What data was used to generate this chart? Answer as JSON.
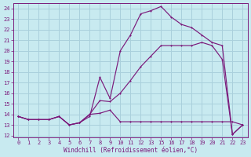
{
  "xlabel": "Windchill (Refroidissement éolien,°C)",
  "bg_color": "#c8eaf0",
  "grid_color": "#aad0dc",
  "line_color": "#7b1a7b",
  "xlim": [
    -0.5,
    23.5
  ],
  "ylim": [
    11.8,
    24.5
  ],
  "xticks": [
    0,
    1,
    2,
    3,
    4,
    5,
    6,
    7,
    8,
    9,
    10,
    11,
    12,
    13,
    15,
    16,
    17,
    18,
    19,
    20,
    21,
    22,
    23
  ],
  "xtick_pos": [
    0,
    1,
    2,
    3,
    4,
    5,
    6,
    7,
    8,
    9,
    10,
    11,
    12,
    13,
    14,
    15,
    16,
    17,
    18,
    19,
    20,
    21,
    22
  ],
  "yticks": [
    12,
    13,
    14,
    15,
    16,
    17,
    18,
    19,
    20,
    21,
    22,
    23,
    24
  ],
  "s1_x": [
    0,
    1,
    2,
    3,
    4,
    5,
    6,
    7,
    8,
    9,
    10,
    11,
    12,
    13,
    14,
    15,
    16,
    17,
    18,
    19,
    20,
    21,
    22
  ],
  "s1_y": [
    13.8,
    13.5,
    13.5,
    13.5,
    13.8,
    13.0,
    13.2,
    13.8,
    17.5,
    15.5,
    20.0,
    21.5,
    23.5,
    23.8,
    24.2,
    23.2,
    22.5,
    22.2,
    21.5,
    20.8,
    20.5,
    12.1,
    13.0
  ],
  "s2_x": [
    0,
    1,
    2,
    3,
    4,
    5,
    6,
    7,
    8,
    9,
    10,
    11,
    12,
    13,
    14,
    15,
    16,
    17,
    18,
    19,
    20,
    21,
    22
  ],
  "s2_y": [
    13.8,
    13.5,
    13.5,
    13.5,
    13.8,
    13.0,
    13.2,
    14.0,
    14.1,
    14.4,
    13.3,
    13.3,
    13.3,
    13.3,
    13.3,
    13.3,
    13.3,
    13.3,
    13.3,
    13.3,
    13.3,
    13.3,
    13.0
  ],
  "s3_x": [
    0,
    1,
    2,
    3,
    4,
    5,
    6,
    7,
    8,
    9,
    10,
    11,
    12,
    13,
    14,
    15,
    16,
    17,
    18,
    19,
    20,
    21,
    22
  ],
  "s3_y": [
    13.8,
    13.5,
    13.5,
    13.5,
    13.8,
    13.0,
    13.2,
    14.0,
    15.3,
    15.2,
    16.0,
    17.2,
    18.5,
    19.5,
    20.5,
    20.5,
    20.5,
    20.5,
    20.8,
    20.5,
    19.2,
    12.1,
    13.0
  ]
}
